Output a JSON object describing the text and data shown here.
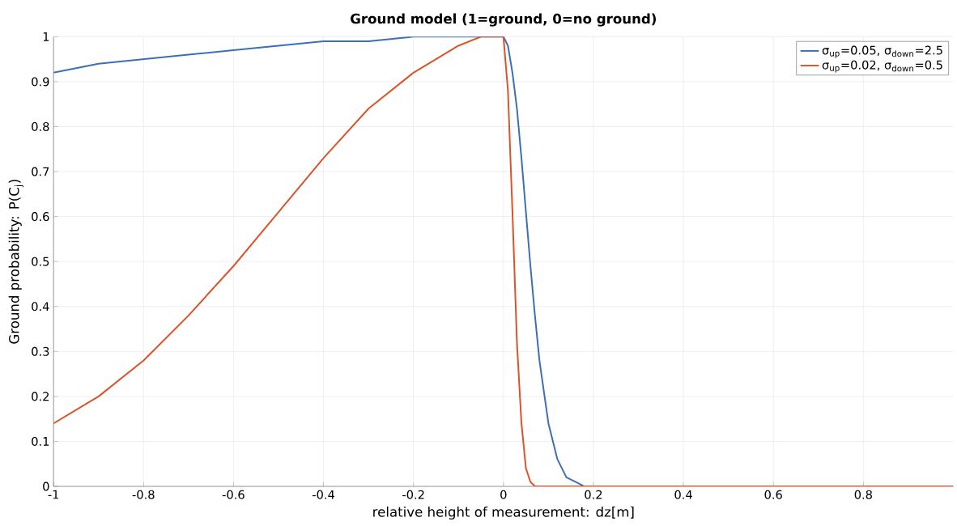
{
  "chart_data": {
    "type": "line",
    "title": "**Ground model (1=ground, 0=no ground)**",
    "xlabel": "relative height of measurement: dz[m]",
    "ylabel": "Ground probability: P(C$_{j}$)",
    "x": [
      -1,
      -0.9,
      -0.8,
      -0.7,
      -0.6,
      -0.5,
      -0.4,
      -0.3,
      -0.2,
      -0.1,
      -0.05,
      0,
      0.01,
      0.02,
      0.03,
      0.04,
      0.05,
      0.06,
      0.07,
      0.08,
      0.1,
      0.12,
      0.14,
      0.16,
      0.18,
      0.2,
      0.4,
      0.6,
      0.8,
      1
    ],
    "series": [
      {
        "name": "σ$_{up}$=0.05, σ$_{down}$=2.5",
        "color": "#3c6fb6",
        "values": [
          0.92,
          0.94,
          0.95,
          0.96,
          0.97,
          0.98,
          0.99,
          0.99,
          1.0,
          1.0,
          1.0,
          1.0,
          0.98,
          0.92,
          0.84,
          0.73,
          0.61,
          0.49,
          0.38,
          0.28,
          0.14,
          0.06,
          0.02,
          0.01,
          0,
          0,
          null,
          null,
          null,
          null
        ]
      },
      {
        "name": "σ$_{up}$=0.02, σ$_{down}$=0.5",
        "color": "#d9542a",
        "values": [
          0.14,
          0.2,
          0.28,
          0.38,
          0.49,
          0.61,
          0.73,
          0.84,
          0.92,
          0.98,
          1.0,
          1.0,
          0.88,
          0.61,
          0.32,
          0.14,
          0.04,
          0.01,
          0,
          0,
          0,
          0,
          0,
          0,
          0,
          0,
          0,
          0,
          0,
          0
        ]
      }
    ],
    "xlim": [
      -1,
      1
    ],
    "ylim": [
      0,
      1
    ],
    "xticks": [
      -1,
      -0.8,
      -0.6,
      -0.4,
      -0.2,
      0,
      0.2,
      0.4,
      0.6,
      0.8
    ],
    "yticks": [
      0,
      0.1,
      0.2,
      0.3,
      0.4,
      0.5,
      0.6,
      0.7,
      0.8,
      0.9,
      1
    ],
    "grid": true,
    "legend": "top right",
    "marker": "none",
    "line_style": "solid"
  }
}
